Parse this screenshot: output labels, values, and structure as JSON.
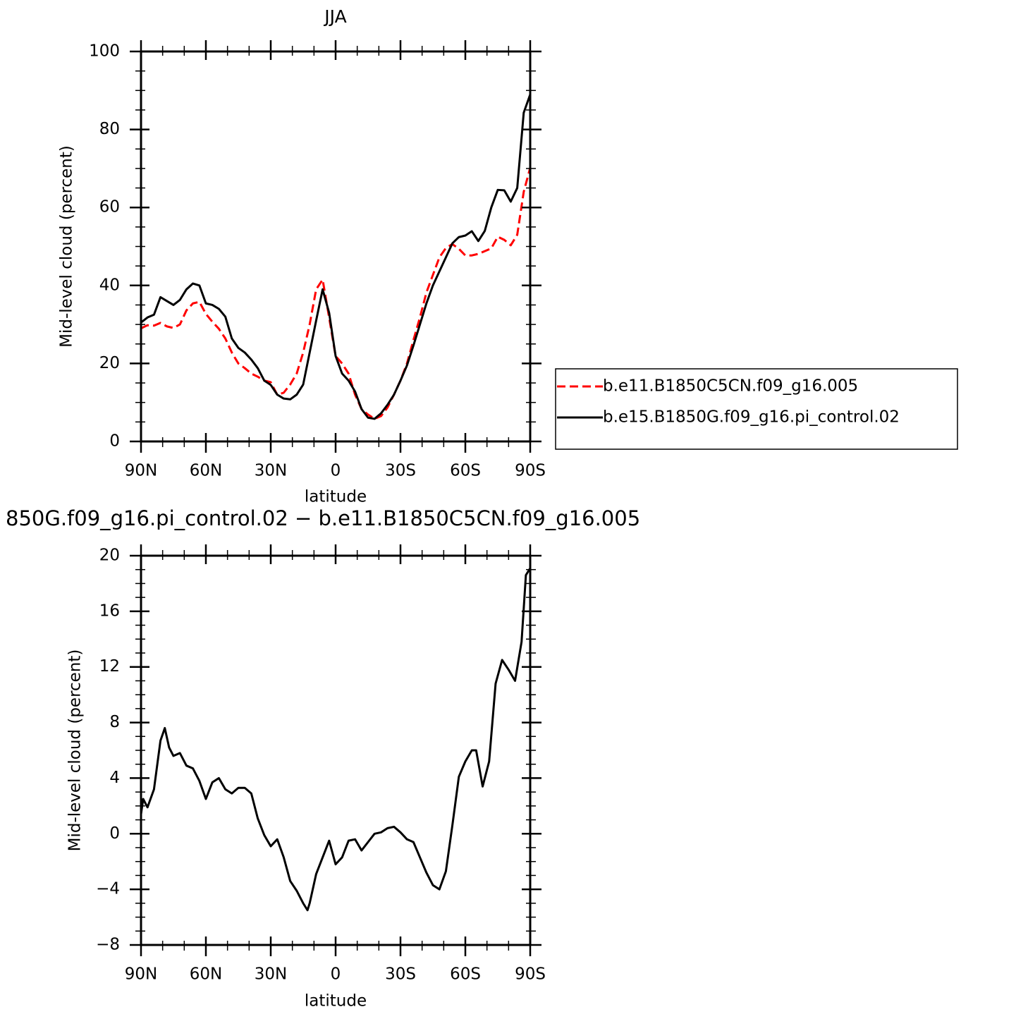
{
  "chart_data": [
    {
      "type": "line",
      "title": "JJA",
      "xlabel": "latitude",
      "ylabel": "Mid-level cloud (percent)",
      "x": [
        90,
        87,
        84,
        81,
        78,
        75,
        72,
        69,
        66,
        63,
        60,
        57,
        54,
        51,
        48,
        45,
        42,
        39,
        36,
        33,
        30,
        27,
        24,
        21,
        18,
        15,
        12,
        9,
        6,
        3,
        0,
        -3,
        -6,
        -9,
        -12,
        -15,
        -18,
        -21,
        -24,
        -27,
        -30,
        -33,
        -36,
        -39,
        -42,
        -45,
        -48,
        -51,
        -54,
        -57,
        -60,
        -63,
        -66,
        -69,
        -72,
        -75,
        -78,
        -81,
        -84,
        -87,
        -90
      ],
      "xlim": [
        90,
        -90
      ],
      "xticks": [
        {
          "value": 90,
          "label": "90N"
        },
        {
          "value": 60,
          "label": "60N"
        },
        {
          "value": 30,
          "label": "30N"
        },
        0,
        {
          "value": -30,
          "label": "30S"
        },
        {
          "value": -60,
          "label": "60S"
        },
        {
          "value": -90,
          "label": "90S"
        }
      ],
      "ylim": [
        0,
        100
      ],
      "yticks": [
        0,
        20,
        40,
        60,
        80,
        100
      ],
      "legend": "right",
      "series": [
        {
          "name": "b.e11.B1850C5CN.f09_g16.005",
          "color": "#ff0000",
          "dash": "dashed",
          "values": [
            29,
            29.8,
            29.7,
            30.4,
            29.5,
            29.1,
            30,
            33.6,
            35.4,
            35.8,
            32.7,
            30.7,
            28.9,
            26.4,
            22.8,
            20,
            18.8,
            17.4,
            16.6,
            15.6,
            15.2,
            12,
            12.5,
            14.6,
            17.4,
            22.8,
            30,
            39,
            41.5,
            31.8,
            21.9,
            20,
            17.4,
            12,
            8.3,
            6.9,
            5.8,
            6.5,
            8.7,
            12,
            15.6,
            20,
            26,
            31.8,
            38.2,
            42.7,
            47.2,
            49.6,
            50.6,
            49.4,
            47.7,
            47.7,
            48.1,
            48.8,
            49.5,
            52.5,
            51.7,
            50.3,
            53,
            64,
            70.2
          ]
        },
        {
          "name": "b.e15.B1850G.f09_g16.pi_control.02",
          "color": "#000000",
          "dash": "solid",
          "values": [
            30.5,
            31.8,
            32.5,
            37,
            36,
            35,
            36.3,
            39,
            40.5,
            40,
            35.4,
            35,
            34,
            32,
            26.4,
            24,
            22.8,
            21,
            18.8,
            15.6,
            14.5,
            12,
            11,
            10.8,
            12,
            14.6,
            22.8,
            31,
            39,
            33,
            21.9,
            17.4,
            15.6,
            12.8,
            8.3,
            6.1,
            5.8,
            7.2,
            9.4,
            12,
            15.6,
            19.5,
            24.6,
            30,
            35.4,
            40,
            43.6,
            47.2,
            50.8,
            52.4,
            52.8,
            53.9,
            51.4,
            54,
            60,
            64.5,
            64.4,
            61.5,
            65,
            84.3,
            89
          ]
        }
      ]
    },
    {
      "type": "line",
      "title": "850G.f09_g16.pi_control.02 − b.e11.B1850C5CN.f09_g16.005",
      "xlabel": "latitude",
      "ylabel": "Mid-level cloud (percent)",
      "x": [
        90,
        89,
        87,
        84,
        81,
        79,
        77,
        75,
        72,
        69,
        66,
        63,
        60,
        57,
        54,
        51,
        48,
        45,
        42,
        39,
        36,
        33,
        30,
        27,
        24,
        21,
        18,
        15,
        13,
        12,
        9,
        6,
        3,
        0,
        -3,
        -6,
        -9,
        -12,
        -15,
        -18,
        -21,
        -24,
        -27,
        -30,
        -33,
        -36,
        -39,
        -42,
        -45,
        -48,
        -51,
        -54,
        -57,
        -60,
        -63,
        -65,
        -68,
        -71,
        -74,
        -77,
        -80,
        -83,
        -86,
        -88,
        -90
      ],
      "xlim": [
        90,
        -90
      ],
      "xticks": [
        {
          "value": 90,
          "label": "90N"
        },
        {
          "value": 60,
          "label": "60N"
        },
        {
          "value": 30,
          "label": "30N"
        },
        0,
        {
          "value": -30,
          "label": "30S"
        },
        {
          "value": -60,
          "label": "60S"
        },
        {
          "value": -90,
          "label": "90S"
        }
      ],
      "ylim": [
        -8,
        20
      ],
      "yticks": [
        {
          "value": -8,
          "label": "−8"
        },
        {
          "value": -4,
          "label": "−4"
        },
        0,
        4,
        8,
        12,
        16,
        20
      ],
      "series": [
        {
          "color": "#000000",
          "dash": "solid",
          "values": [
            1.4,
            2.5,
            1.9,
            3.2,
            6.7,
            7.6,
            6.2,
            5.6,
            5.8,
            4.9,
            4.7,
            3.8,
            2.5,
            3.7,
            4,
            3.2,
            2.9,
            3.3,
            3.3,
            2.9,
            1.1,
            -0.1,
            -0.9,
            -0.4,
            -1.7,
            -3.4,
            -4.1,
            -5,
            -5.5,
            -5,
            -2.9,
            -1.7,
            -0.5,
            -2.2,
            -1.7,
            -0.5,
            -0.4,
            -1.2,
            -0.6,
            0,
            0.1,
            0.4,
            0.5,
            0.1,
            -0.4,
            -0.6,
            -1.7,
            -2.8,
            -3.7,
            -4,
            -2.7,
            0.6,
            4.1,
            5.2,
            6,
            6,
            3.4,
            5.2,
            10.8,
            12.5,
            11.8,
            11,
            13.8,
            18.6,
            19.1
          ]
        }
      ]
    }
  ]
}
